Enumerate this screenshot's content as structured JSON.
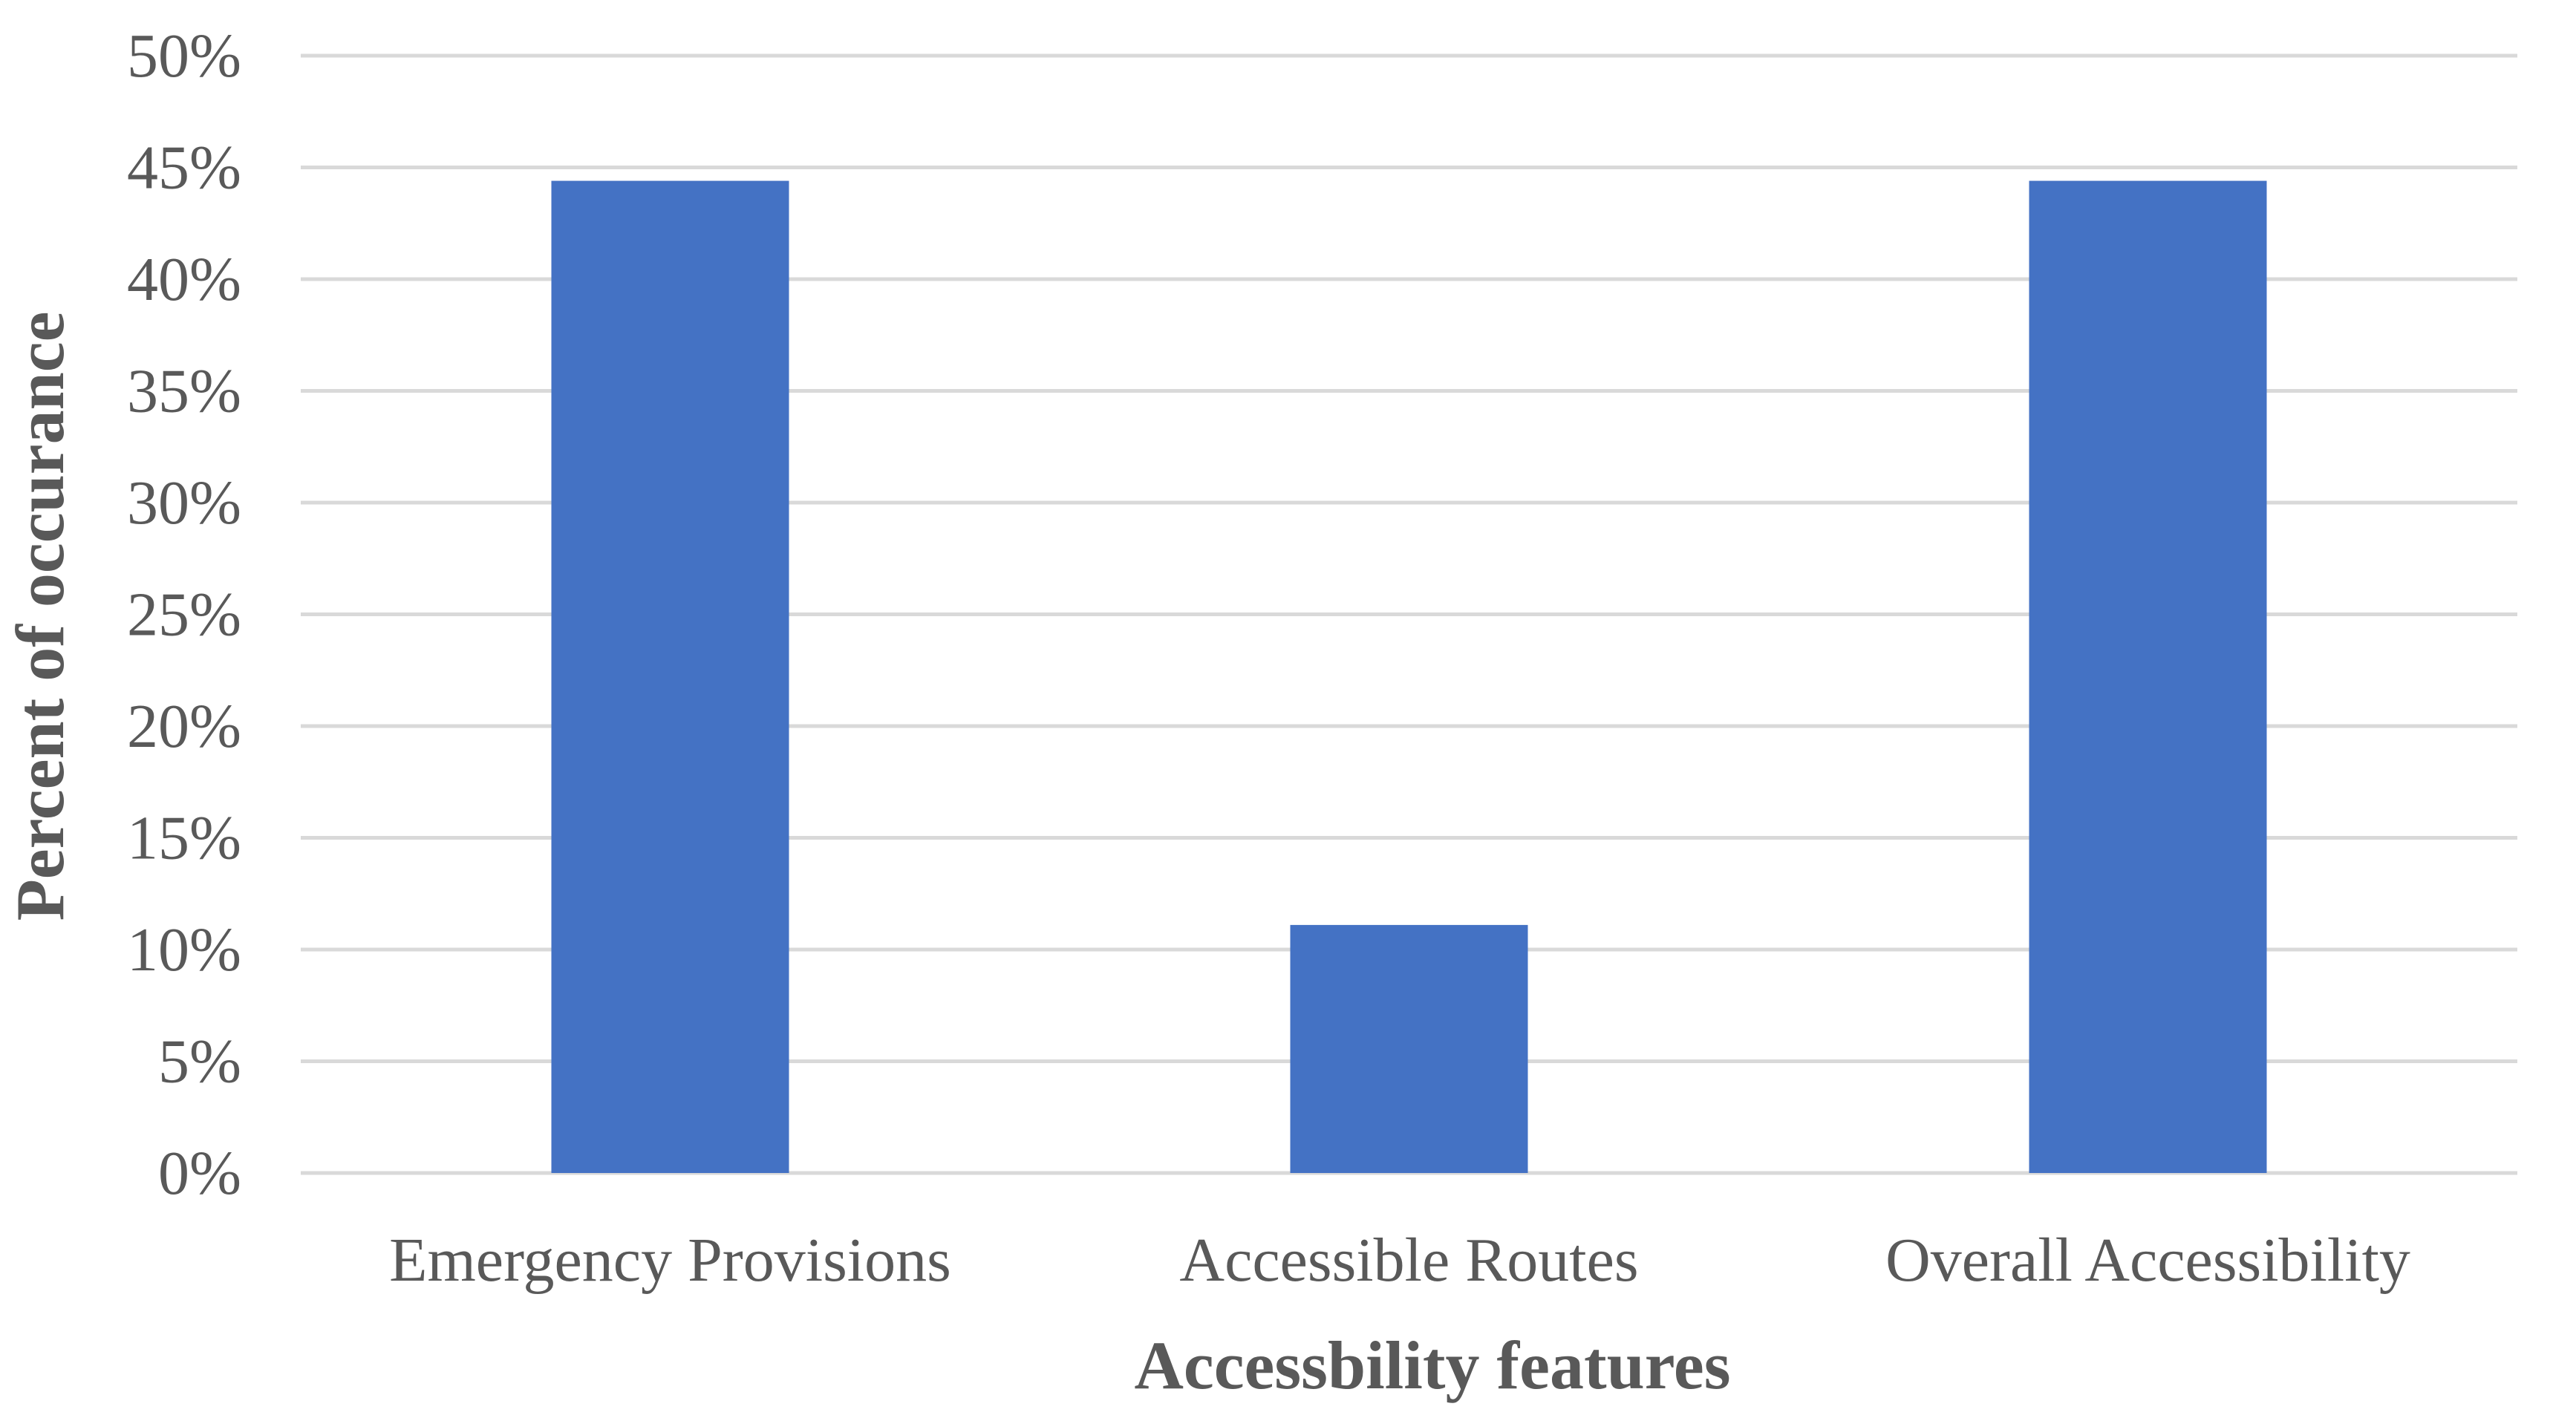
{
  "chart_data": {
    "type": "bar",
    "categories": [
      "Emergency Provisions",
      "Accessible Routes",
      "Overall Accessibility"
    ],
    "values": [
      44.4,
      11.1,
      44.4
    ],
    "yticks": [
      "0%",
      "5%",
      "10%",
      "15%",
      "20%",
      "25%",
      "30%",
      "35%",
      "40%",
      "45%",
      "50%"
    ],
    "ylim": [
      0,
      50
    ],
    "xlabel": "Accessbility features",
    "ylabel": "Percent of occurance",
    "grid": true,
    "colors": {
      "bar": "#4472c4",
      "grid": "#d9d9d9",
      "text": "#595959"
    }
  }
}
